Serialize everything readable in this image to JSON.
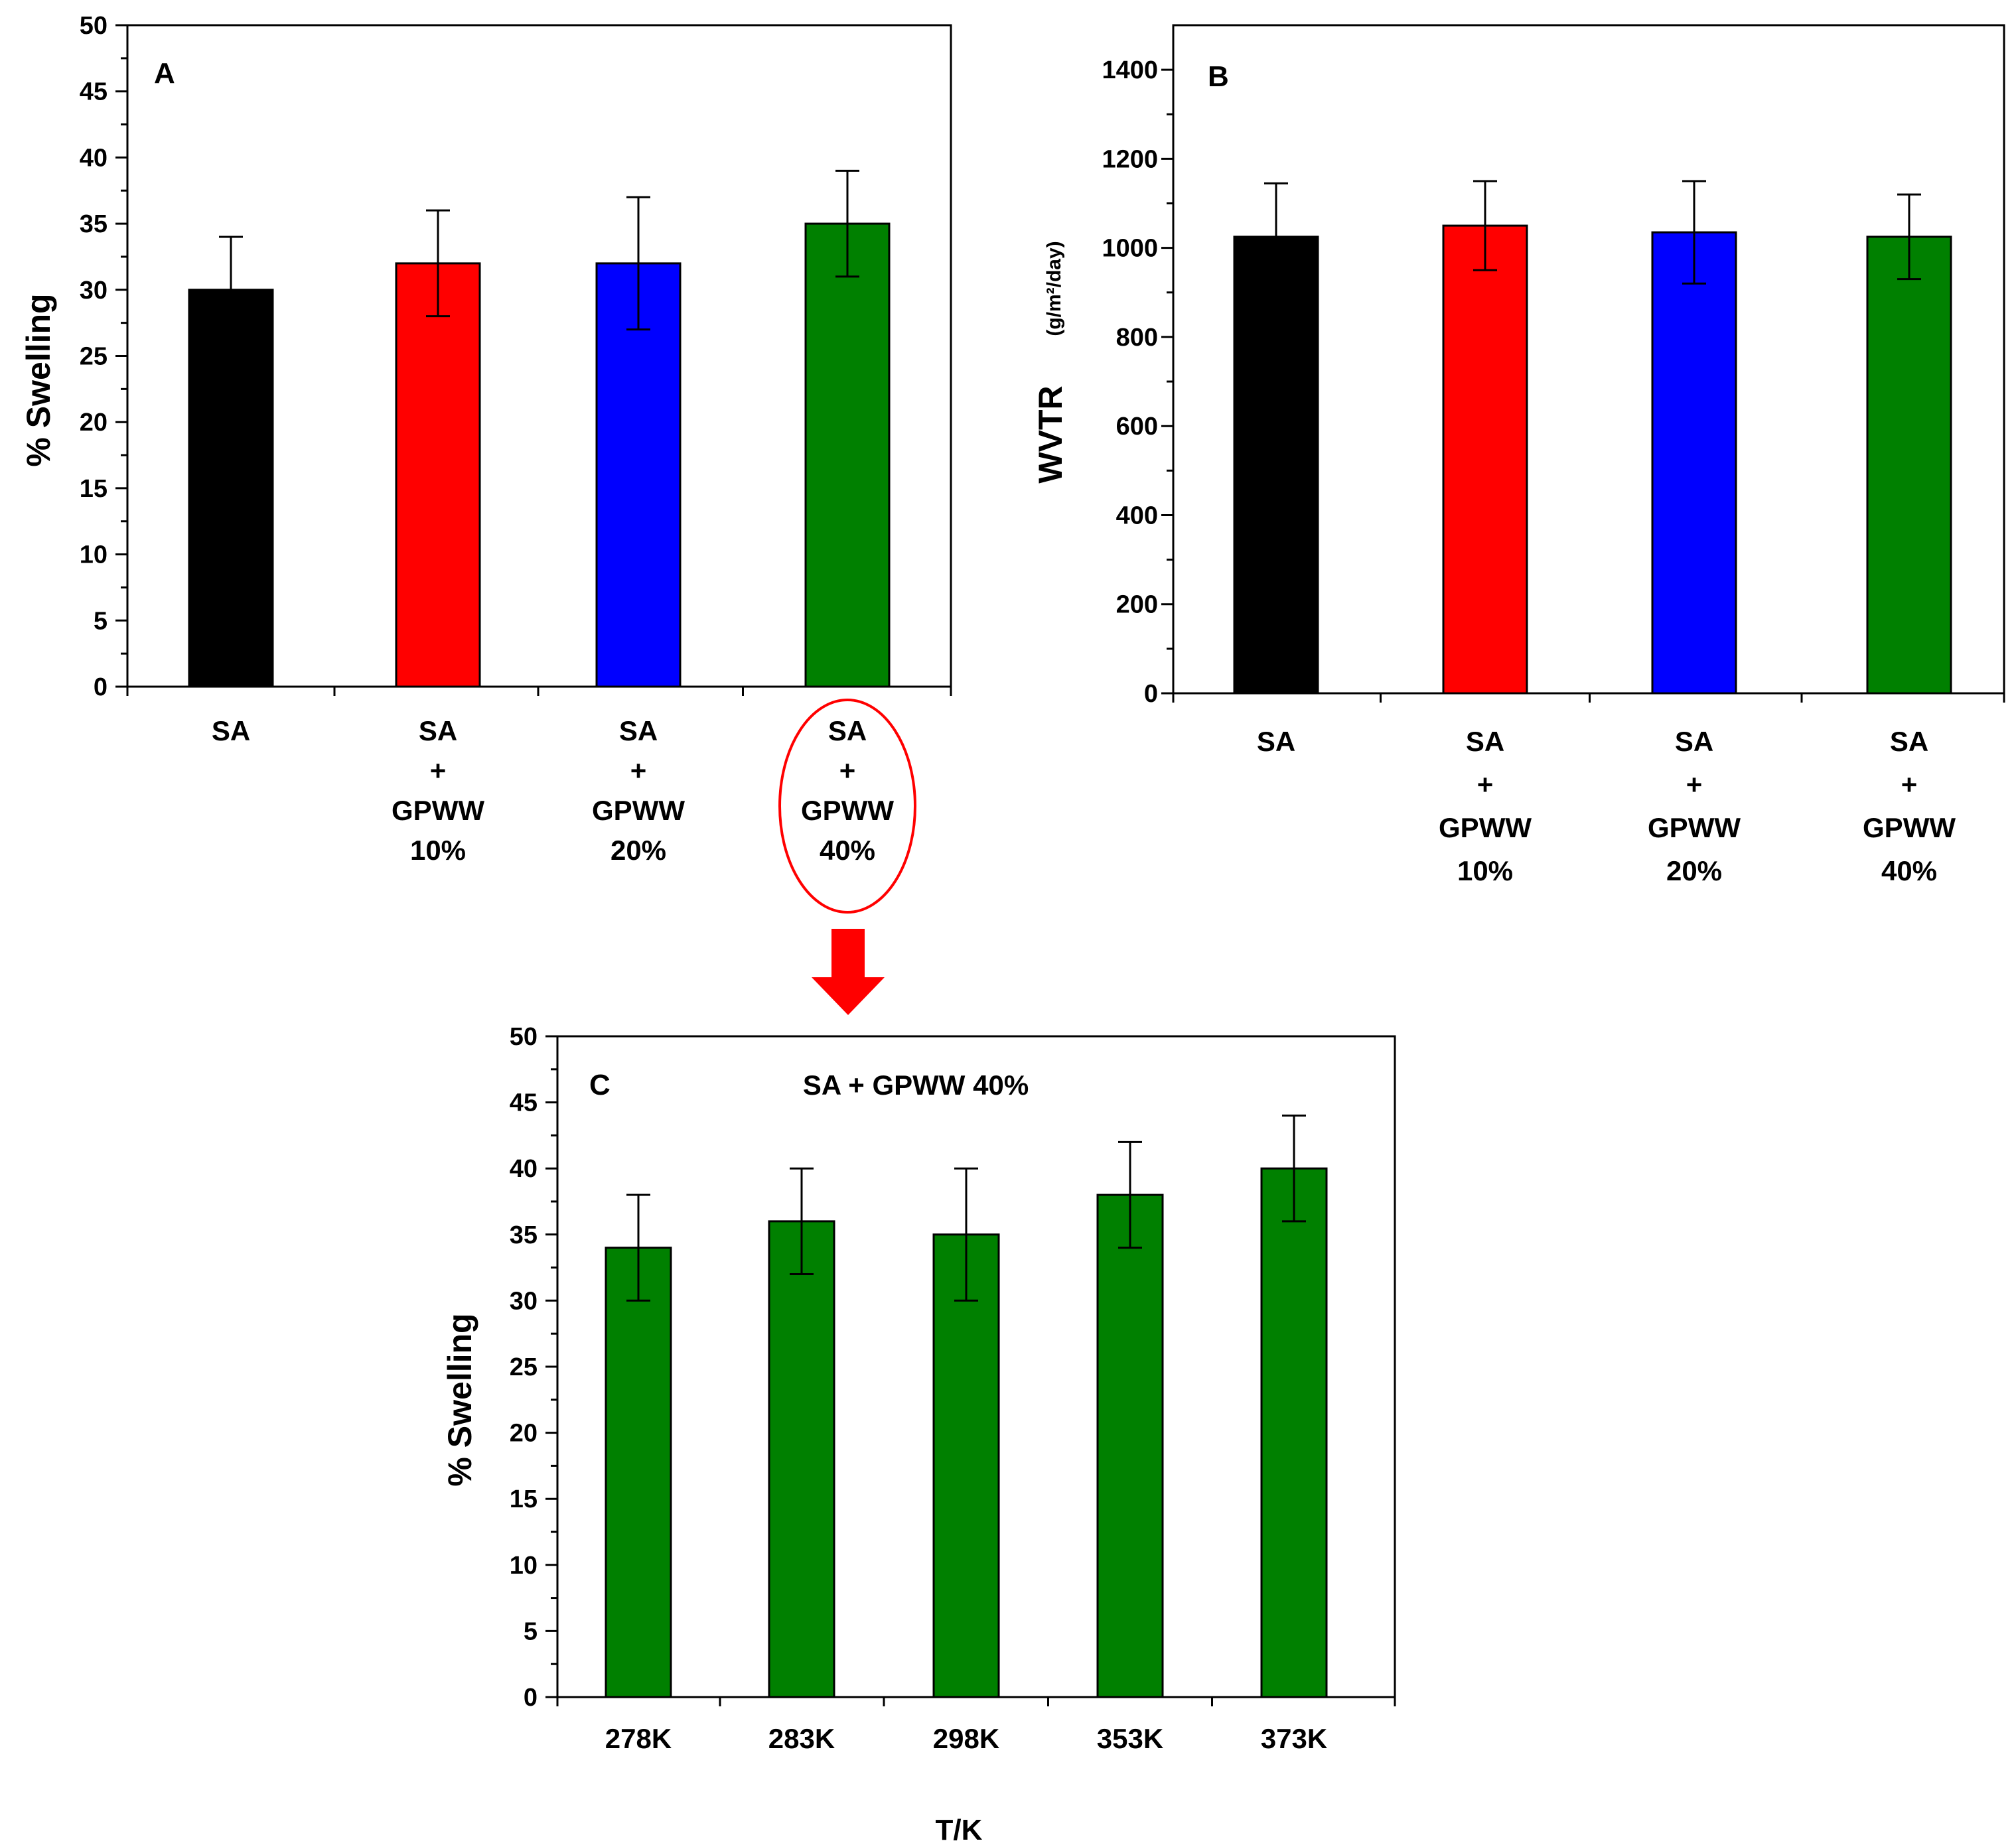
{
  "chart_data": [
    {
      "panel": "A",
      "type": "bar",
      "title": "",
      "xlabel": "",
      "ylabel": "% Swelling",
      "ylim": [
        0,
        50
      ],
      "yticks": [
        0,
        5,
        10,
        15,
        20,
        25,
        30,
        35,
        40,
        45,
        50
      ],
      "categories": [
        [
          "SA"
        ],
        [
          "SA",
          "+",
          "GPWW",
          "10%"
        ],
        [
          "SA",
          "+",
          "GPWW",
          "20%"
        ],
        [
          "SA",
          "+",
          "GPWW",
          "40%"
        ]
      ],
      "values": [
        30,
        32,
        32,
        35
      ],
      "errors": [
        4,
        4,
        5,
        4
      ],
      "colors": [
        "#000000",
        "#ff0000",
        "#0000ff",
        "#008000"
      ],
      "highlighted_category_index": 3,
      "highlight_color": "#ff0000",
      "grid": false
    },
    {
      "panel": "B",
      "type": "bar",
      "title": "",
      "xlabel": "",
      "ylabel": "WVTR",
      "ylabel_unit": "(g/m²/day)",
      "ylim": [
        0,
        1500
      ],
      "yticks": [
        0,
        200,
        400,
        600,
        800,
        1000,
        1200,
        1400
      ],
      "categories": [
        [
          "SA"
        ],
        [
          "SA",
          "+",
          "GPWW",
          "10%"
        ],
        [
          "SA",
          "+",
          "GPWW",
          "20%"
        ],
        [
          "SA",
          "+",
          "GPWW",
          "40%"
        ]
      ],
      "values": [
        1025,
        1050,
        1035,
        1025
      ],
      "errors": [
        120,
        100,
        115,
        95
      ],
      "colors": [
        "#000000",
        "#ff0000",
        "#0000ff",
        "#008000"
      ],
      "grid": false
    },
    {
      "panel": "C",
      "type": "bar",
      "title": "SA + GPWW 40%",
      "xlabel": "T/K",
      "ylabel": "% Swelling",
      "ylim": [
        0,
        50
      ],
      "yticks": [
        0,
        5,
        10,
        15,
        20,
        25,
        30,
        35,
        40,
        45,
        50
      ],
      "categories": [
        [
          "278K"
        ],
        [
          "283K"
        ],
        [
          "298K"
        ],
        [
          "353K"
        ],
        [
          "373K"
        ]
      ],
      "values": [
        34,
        36,
        35,
        38,
        40
      ],
      "errors": [
        4,
        4,
        5,
        4,
        4
      ],
      "colors": [
        "#008000",
        "#008000",
        "#008000",
        "#008000",
        "#008000"
      ],
      "grid": false
    }
  ],
  "arrow_color": "#ff0000"
}
